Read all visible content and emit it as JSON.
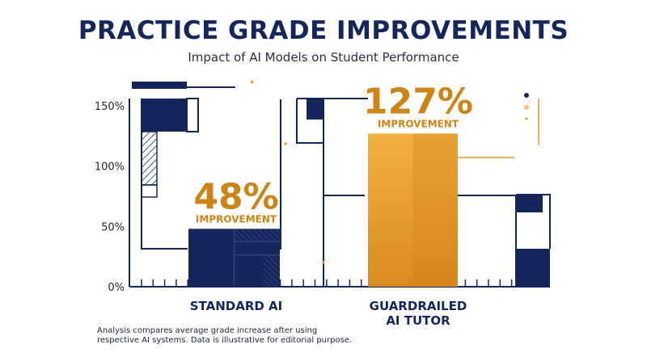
{
  "title": "PRACTICE GRADE IMPROVEMENTS",
  "subtitle": "Impact of AI Models on Student Performance",
  "colors": {
    "navy": "#15275a",
    "orange": "#e39a2e",
    "orange_dark": "#c97d16",
    "text_orange": "#cc8418"
  },
  "chart_data": {
    "type": "bar",
    "categories": [
      "STANDARD AI",
      "GUARDRAILED\nAI TUTOR"
    ],
    "values": [
      48,
      127
    ],
    "data_labels": [
      {
        "value": "48%",
        "note": "IMPROVEMENT"
      },
      {
        "value": "127%",
        "note": "IMPROVEMENT"
      }
    ],
    "yticks": [
      "0%",
      "50%",
      "100%",
      "150%"
    ],
    "ytick_values": [
      0,
      50,
      100,
      150
    ],
    "ylim": [
      0,
      150
    ],
    "grid": false,
    "bar_colors": [
      "#15275a",
      "#e39a2e"
    ]
  },
  "footnote": "Analysis compares average grade increase after using respective AI systems. Data is illustrative for editorial purpose."
}
